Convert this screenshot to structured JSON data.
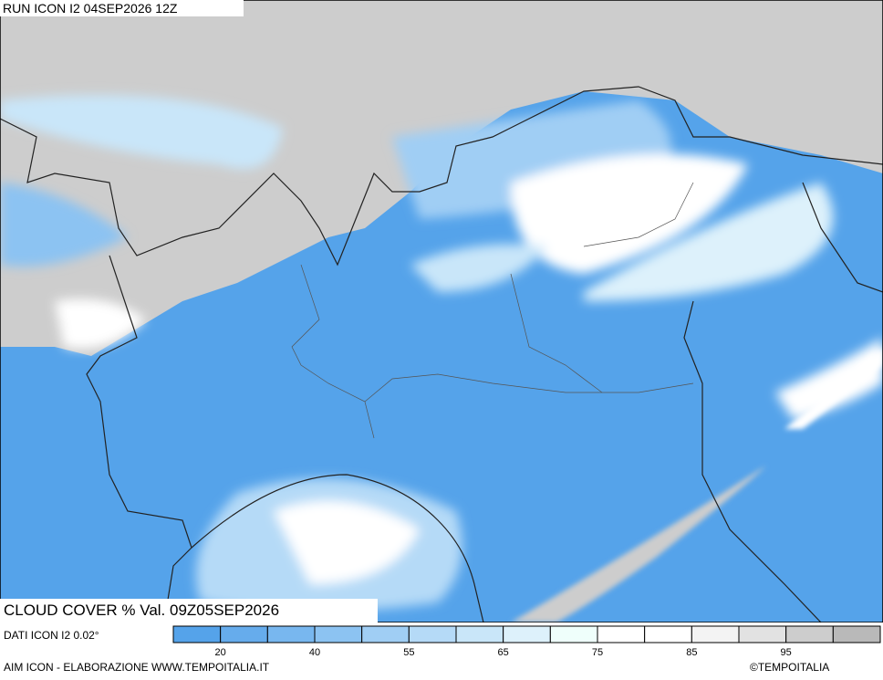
{
  "header": {
    "run": "RUN ICON I2 04SEP2026 12Z"
  },
  "title": "CLOUD COVER % Val. 09Z05SEP2026",
  "source": "DATI ICON I2 0.02°",
  "footer": "AIM ICON - ELABORAZIONE WWW.TEMPOITALIA.IT",
  "copyright": "©TEMPOITALIA",
  "colorbar": {
    "colors": [
      "#55a3ea",
      "#66acec",
      "#78b7ef",
      "#8cc3f2",
      "#a0cef4",
      "#b5daf7",
      "#c9e6f9",
      "#ddf1fb",
      "#effffb",
      "#ffffff",
      "#ffffff",
      "#f3f3f3",
      "#e2e2e2",
      "#cdcdcd",
      "#b9b9b9"
    ],
    "labels": [
      "20",
      "40",
      "55",
      "65",
      "75",
      "85",
      "95"
    ]
  }
}
